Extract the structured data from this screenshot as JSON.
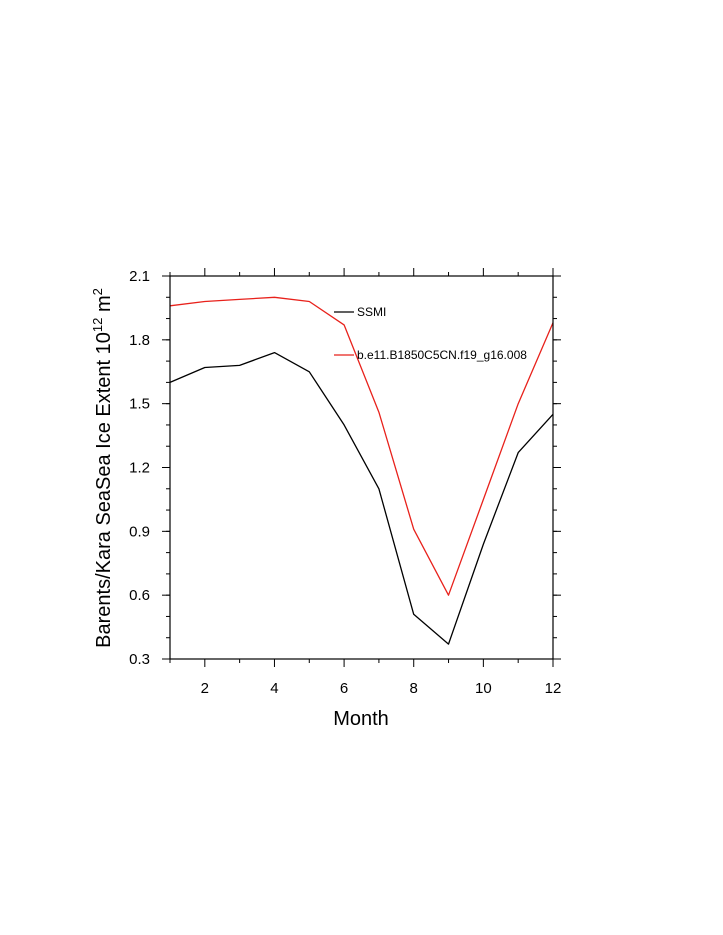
{
  "chart_data": {
    "type": "line",
    "xlabel": "Month",
    "ylabel": {
      "main": "Barents/Kara SeaSea Ice Extent 10",
      "sup1": "12",
      "unit": " m",
      "sup2": "2"
    },
    "xlim": [
      1,
      12
    ],
    "ylim": [
      0.3,
      2.1
    ],
    "x_ticks": [
      2,
      4,
      6,
      8,
      10,
      12
    ],
    "x_minor_ticks": [
      1,
      3,
      5,
      7,
      9,
      11
    ],
    "y_ticks": [
      0.3,
      0.6,
      0.9,
      1.2,
      1.5,
      1.8,
      2.1
    ],
    "y_tick_labels": [
      "0.3",
      "0.6",
      "0.9",
      "1.2",
      "1.5",
      "1.8",
      "2.1"
    ],
    "y_minor_step": 0.1,
    "grid": false,
    "legend_placement": "upper-middle",
    "series": [
      {
        "name": "SSMI",
        "color": "#000000",
        "x": [
          1,
          2,
          3,
          4,
          5,
          6,
          7,
          8,
          9,
          10,
          11,
          12
        ],
        "values": [
          1.6,
          1.67,
          1.68,
          1.74,
          1.65,
          1.4,
          1.1,
          0.51,
          0.37,
          0.84,
          1.27,
          1.45
        ]
      },
      {
        "name": "b.e11.B1850C5CN.f19_g16.008",
        "color": "#e8211b",
        "x": [
          1,
          2,
          3,
          4,
          5,
          6,
          7,
          8,
          9,
          10,
          11,
          12
        ],
        "values": [
          1.96,
          1.98,
          1.99,
          2.0,
          1.98,
          1.87,
          1.46,
          0.91,
          0.6,
          1.05,
          1.5,
          1.88
        ]
      }
    ]
  }
}
